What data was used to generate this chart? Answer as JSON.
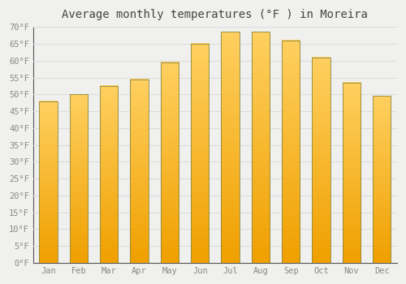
{
  "title": "Average monthly temperatures (°F ) in Moreira",
  "months": [
    "Jan",
    "Feb",
    "Mar",
    "Apr",
    "May",
    "Jun",
    "Jul",
    "Aug",
    "Sep",
    "Oct",
    "Nov",
    "Dec"
  ],
  "values": [
    48,
    50,
    52.5,
    54.5,
    59.5,
    65,
    68.5,
    68.5,
    66,
    61,
    53.5,
    49.5
  ],
  "bar_color_top": "#FFD060",
  "bar_color_bottom": "#F0A000",
  "bar_edge_color": "#888844",
  "ylim": [
    0,
    70
  ],
  "yticks": [
    0,
    5,
    10,
    15,
    20,
    25,
    30,
    35,
    40,
    45,
    50,
    55,
    60,
    65,
    70
  ],
  "ytick_labels": [
    "0°F",
    "5°F",
    "10°F",
    "15°F",
    "20°F",
    "25°F",
    "30°F",
    "35°F",
    "40°F",
    "45°F",
    "50°F",
    "55°F",
    "60°F",
    "65°F",
    "70°F"
  ],
  "background_color": "#f0f0ee",
  "grid_color": "#dddddd",
  "title_fontsize": 10,
  "tick_fontsize": 7.5,
  "bar_width": 0.6
}
